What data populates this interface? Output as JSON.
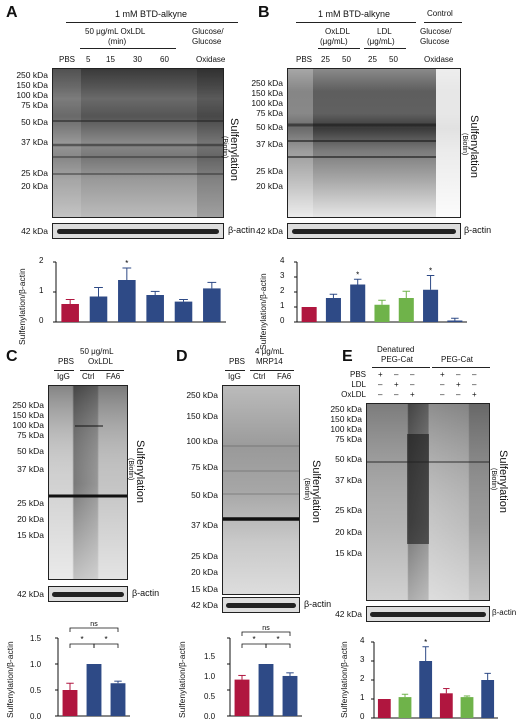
{
  "colors": {
    "red": "#b0163f",
    "blue": "#2e4a86",
    "green": "#6fb34a",
    "grey": "#888"
  },
  "panels": {
    "A": {
      "letter": "A",
      "treatment": "1 mM BTD-alkyne",
      "oxldl_label": "50 μg/mL OxLDL",
      "oxldl_unit": "(min)",
      "lanes": [
        "PBS",
        "5",
        "15",
        "30",
        "60"
      ],
      "gg_label": "Glucose/",
      "gg_label2": "Glucose",
      "gg_label3": "Oxidase",
      "kda": [
        "250 kDa",
        "150 kDa",
        "100 kDa",
        "75 kDa",
        "50 kDa",
        "37 kDa",
        "25 kDa",
        "20 kDa"
      ],
      "actin_kda": "42 kDa",
      "actin": "β-actin",
      "side": "Sulfenylation",
      "side_sub": "(Biotin)",
      "ylabel": "Sulfenylation/β-actin",
      "yticks": [
        "0",
        "1",
        "2"
      ],
      "star": "*"
    },
    "B": {
      "letter": "B",
      "treatment": "1 mM BTD-alkyne",
      "control": "Control",
      "oxldl": "OxLDL",
      "oxldl_unit": "(μg/mL)",
      "ldl": "LDL",
      "ldl_unit": "(μg/mL)",
      "gg1": "Glucose/",
      "gg2": "Glucose",
      "gg3": "Oxidase",
      "lanes": [
        "PBS",
        "25",
        "50",
        "25",
        "50"
      ],
      "kda": [
        "250 kDa",
        "150 kDa",
        "100 kDa",
        "75 kDa",
        "50 kDa",
        "37 kDa",
        "25 kDa",
        "20 kDa"
      ],
      "actin_kda": "42 kDa",
      "actin": "β-actin",
      "side": "Sulfenylation",
      "side_sub": "(Biotin)",
      "ylabel": "Sulfenylation/β-actin",
      "yticks": [
        "0",
        "1",
        "2",
        "3",
        "4"
      ],
      "star": "*"
    },
    "C": {
      "letter": "C",
      "pbs": "PBS",
      "conc": "50 μg/mL",
      "name": "OxLDL",
      "lanes": [
        "IgG",
        "Ctrl",
        "FA6"
      ],
      "kda": [
        "250 kDa",
        "150 kDa",
        "100 kDa",
        "75 kDa",
        "50 kDa",
        "37 kDa",
        "25 kDa",
        "20 kDa",
        "15 kDa"
      ],
      "actin_kda": "42 kDa",
      "actin": "β-actin",
      "side": "Sulfenylation",
      "side_sub": "(Biotin)",
      "ylabel": "Sulfenylation/β-actin",
      "yticks": [
        "0.0",
        "0.5",
        "1.0",
        "1.5"
      ],
      "ns": "ns",
      "star": "*"
    },
    "D": {
      "letter": "D",
      "pbs": "PBS",
      "conc": "4 μg/mL",
      "name": "MRP14",
      "lanes": [
        "IgG",
        "Ctrl",
        "FA6"
      ],
      "kda": [
        "250 kDa",
        "150 kDa",
        "100 kDa",
        "75 kDa",
        "50 kDa",
        "37 kDa",
        "25 kDa",
        "20 kDa",
        "15 kDa"
      ],
      "actin_kda": "42 kDa",
      "actin": "β-actin",
      "side": "Sulfenylation",
      "side_sub": "(Biotin)",
      "ylabel": "Sulfenylation/β-actin",
      "yticks": [
        "0.0",
        "0.5",
        "1.0",
        "1.5"
      ],
      "ns": "ns",
      "star": "*"
    },
    "E": {
      "letter": "E",
      "den1": "Denatured",
      "den2": "PEG-Cat",
      "peg": "PEG-Cat",
      "rows": [
        {
          "name": "PBS",
          "vals": [
            "+",
            "–",
            "–",
            "+",
            "–",
            "–"
          ]
        },
        {
          "name": "LDL",
          "vals": [
            "–",
            "+",
            "–",
            "–",
            "+",
            "–"
          ]
        },
        {
          "name": "OxLDL",
          "vals": [
            "–",
            "–",
            "+",
            "–",
            "–",
            "+"
          ]
        }
      ],
      "kda": [
        "250 kDa",
        "150 kDa",
        "100 kDa",
        "75 kDa",
        "50 kDa",
        "37 kDa",
        "25 kDa",
        "20 kDa",
        "15 kDa"
      ],
      "actin_kda": "42 kDa",
      "actin": "β-actin",
      "side": "Sulfenylation",
      "side_sub": "(Biotin)",
      "ylabel": "Sulfenylation/β-actin",
      "yticks": [
        "0",
        "1",
        "2",
        "3",
        "4"
      ],
      "star": "*"
    }
  },
  "chart_data": [
    {
      "type": "bar",
      "panel": "A",
      "categories": [
        "PBS",
        "5",
        "15",
        "30",
        "60",
        "Glucose/Glucose Oxidase"
      ],
      "values": [
        0.6,
        0.85,
        1.4,
        0.9,
        0.68,
        1.12
      ],
      "errors": [
        0.15,
        0.3,
        0.4,
        0.12,
        0.07,
        0.2
      ],
      "colors": [
        "red",
        "blue",
        "blue",
        "blue",
        "blue",
        "blue"
      ],
      "ylabel": "Sulfenylation/β-actin",
      "ylim": [
        0,
        2
      ]
    },
    {
      "type": "bar",
      "panel": "B",
      "categories": [
        "PBS",
        "OxLDL 25",
        "OxLDL 50",
        "LDL 25",
        "LDL 50",
        "Glucose/Glucose Oxidase",
        "Control"
      ],
      "values": [
        1.0,
        1.6,
        2.5,
        1.15,
        1.6,
        2.15,
        0.1
      ],
      "errors": [
        0,
        0.25,
        0.35,
        0.3,
        0.45,
        0.95,
        0.15
      ],
      "colors": [
        "red",
        "blue",
        "blue",
        "green",
        "green",
        "blue",
        "blue"
      ],
      "ylabel": "Sulfenylation/β-actin",
      "ylim": [
        0,
        4
      ]
    },
    {
      "type": "bar",
      "panel": "C",
      "categories": [
        "IgG",
        "Ctrl",
        "FA6"
      ],
      "values": [
        0.5,
        1.0,
        0.63
      ],
      "errors": [
        0.13,
        0,
        0.04
      ],
      "colors": [
        "red",
        "blue",
        "blue"
      ],
      "ylabel": "Sulfenylation/β-actin",
      "ylim": [
        0,
        1.5
      ]
    },
    {
      "type": "bar",
      "panel": "D",
      "categories": [
        "IgG",
        "Ctrl",
        "FA6"
      ],
      "values": [
        0.7,
        1.0,
        0.77
      ],
      "errors": [
        0.08,
        0,
        0.06
      ],
      "colors": [
        "red",
        "blue",
        "blue"
      ],
      "ylabel": "Sulfenylation/β-actin",
      "ylim": [
        0,
        1.5
      ]
    },
    {
      "type": "bar",
      "panel": "E",
      "categories": [
        "Den PBS",
        "Den LDL",
        "Den OxLDL",
        "PEG PBS",
        "PEG LDL",
        "PEG OxLDL"
      ],
      "values": [
        1.0,
        1.1,
        3.0,
        1.3,
        1.1,
        2.0
      ],
      "errors": [
        0,
        0.15,
        0.75,
        0.25,
        0.06,
        0.35
      ],
      "colors": [
        "red",
        "green",
        "blue",
        "red",
        "green",
        "blue"
      ],
      "ylabel": "Sulfenylation/β-actin",
      "ylim": [
        0,
        4
      ]
    }
  ]
}
